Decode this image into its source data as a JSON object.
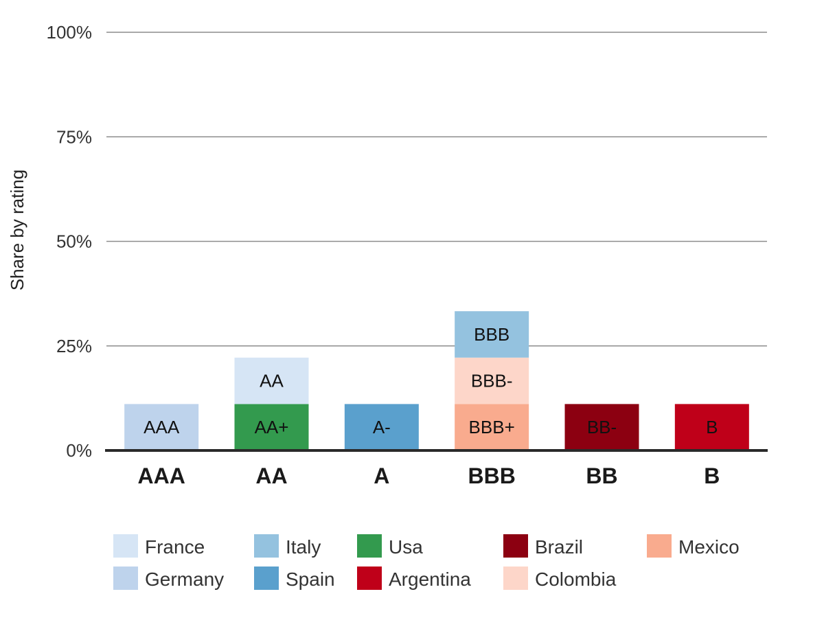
{
  "chart_data": {
    "type": "bar",
    "stacked": true,
    "xlabel": "",
    "ylabel": "Share by rating",
    "ylim": [
      0,
      100
    ],
    "y_ticks": [
      "0%",
      "25%",
      "50%",
      "75%",
      "100%"
    ],
    "y_tick_values": [
      0,
      25,
      50,
      75,
      100
    ],
    "grid": true,
    "legend_position": "bottom",
    "categories": [
      "AAA",
      "AA",
      "A",
      "BBB",
      "BB",
      "B"
    ],
    "stacks": [
      [
        {
          "country": "Germany",
          "label": "AAA",
          "value": 11.1
        }
      ],
      [
        {
          "country": "Usa",
          "label": "AA+",
          "value": 11.1
        },
        {
          "country": "France",
          "label": "AA",
          "value": 11.1
        }
      ],
      [
        {
          "country": "Spain",
          "label": "A-",
          "value": 11.1
        }
      ],
      [
        {
          "country": "Mexico",
          "label": "BBB+",
          "value": 11.1
        },
        {
          "country": "Colombia",
          "label": "BBB-",
          "value": 11.1
        },
        {
          "country": "Italy",
          "label": "BBB",
          "value": 11.1
        }
      ],
      [
        {
          "country": "Brazil",
          "label": "BB-",
          "value": 11.1
        }
      ],
      [
        {
          "country": "Argentina",
          "label": "B",
          "value": 11.1
        }
      ]
    ],
    "legend": [
      {
        "name": "France",
        "color": "#d6e5f5"
      },
      {
        "name": "Italy",
        "color": "#94c2df"
      },
      {
        "name": "Usa",
        "color": "#339a4e"
      },
      {
        "name": "Brazil",
        "color": "#8c0011"
      },
      {
        "name": "Mexico",
        "color": "#f9ab8e"
      },
      {
        "name": "Germany",
        "color": "#bed3ec"
      },
      {
        "name": "Spain",
        "color": "#5aa0cd"
      },
      {
        "name": "Argentina",
        "color": "#bf0019"
      },
      {
        "name": "Colombia",
        "color": "#fdd6c9"
      }
    ]
  }
}
